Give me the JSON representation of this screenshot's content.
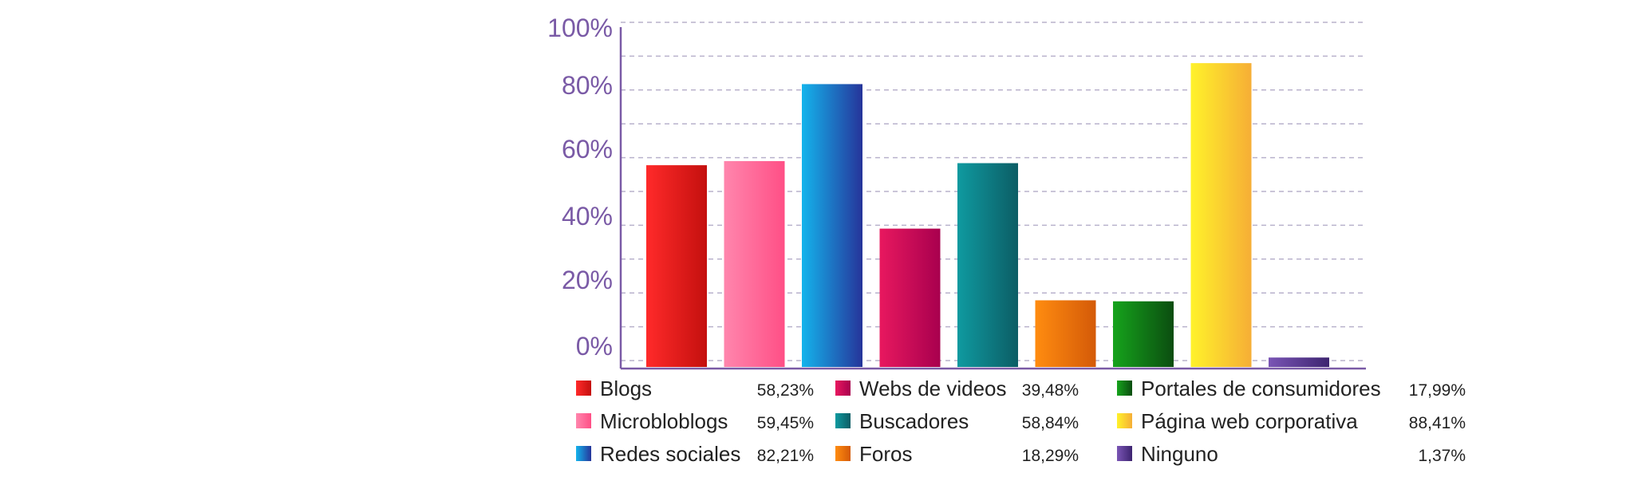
{
  "chart_data": {
    "type": "bar",
    "categories": [
      "Blogs",
      "Microbloblogs",
      "Redes sociales",
      "Webs de videos",
      "Buscadores",
      "Foros",
      "Portales de consumidores",
      "Página web corporativa",
      "Ninguno"
    ],
    "values": [
      58.23,
      59.45,
      82.21,
      39.48,
      58.84,
      18.29,
      17.99,
      88.41,
      1.37
    ],
    "value_labels": [
      "58,23%",
      "59,45%",
      "82,21%",
      "39,48%",
      "58,84%",
      "18,29%",
      "17,99%",
      "88,41%",
      "1,37%"
    ],
    "yticks": [
      "0%",
      "20%",
      "40%",
      "60%",
      "80%",
      "100%"
    ],
    "ylim": [
      0,
      100
    ],
    "grid": true,
    "legend_placement": "bottom",
    "title": "",
    "xlabel": "",
    "ylabel": ""
  },
  "colors": {
    "axis": "#7a5aa6",
    "grid": "#b9b2cc",
    "bars": [
      [
        "#ff2a2a",
        "#c4100e"
      ],
      [
        "#ff86ad",
        "#ff4f86"
      ],
      [
        "#14b4ec",
        "#26349a"
      ],
      [
        "#e8185f",
        "#a8004e"
      ],
      [
        "#0f9aa0",
        "#0c5d65"
      ],
      [
        "#ff8c10",
        "#d45a08"
      ],
      [
        "#16a31c",
        "#0b4d10"
      ],
      [
        "#fff22a",
        "#f6ae36"
      ],
      [
        "#7a55b5",
        "#3d2470"
      ]
    ]
  }
}
